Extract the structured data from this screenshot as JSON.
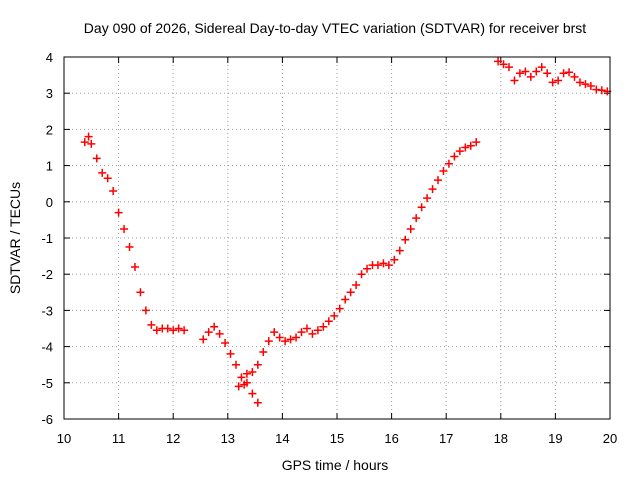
{
  "chart_data": {
    "type": "scatter",
    "title": "Day 090 of 2026, Sidereal Day-to-day VTEC variation (SDTVAR) for receiver brst",
    "xlabel": "GPS time / hours",
    "ylabel": "SDTVAR / TECUs",
    "xlim": [
      10,
      20
    ],
    "ylim": [
      -6,
      4
    ],
    "xticks": [
      "10",
      "11",
      "12",
      "13",
      "14",
      "15",
      "16",
      "17",
      "18",
      "19",
      "20"
    ],
    "yticks": [
      "4",
      "3",
      "2",
      "1",
      "0",
      "-1",
      "-2",
      "-3",
      "-4",
      "-5",
      "-6"
    ],
    "grid": true,
    "marker": "plus",
    "marker_color": "#ff0000",
    "series": [
      {
        "name": "SDTVAR",
        "points": [
          [
            10.38,
            1.65
          ],
          [
            10.45,
            1.8
          ],
          [
            10.5,
            1.6
          ],
          [
            10.6,
            1.2
          ],
          [
            10.7,
            0.8
          ],
          [
            10.8,
            0.65
          ],
          [
            10.9,
            0.3
          ],
          [
            11.0,
            -0.3
          ],
          [
            11.1,
            -0.75
          ],
          [
            11.2,
            -1.25
          ],
          [
            11.3,
            -1.8
          ],
          [
            11.4,
            -2.5
          ],
          [
            11.5,
            -3.0
          ],
          [
            11.6,
            -3.4
          ],
          [
            11.7,
            -3.55
          ],
          [
            11.8,
            -3.5
          ],
          [
            11.9,
            -3.5
          ],
          [
            12.0,
            -3.55
          ],
          [
            12.1,
            -3.5
          ],
          [
            12.2,
            -3.55
          ],
          [
            12.55,
            -3.8
          ],
          [
            12.65,
            -3.6
          ],
          [
            12.75,
            -3.45
          ],
          [
            12.85,
            -3.65
          ],
          [
            12.95,
            -3.9
          ],
          [
            13.05,
            -4.2
          ],
          [
            13.15,
            -4.5
          ],
          [
            13.25,
            -4.85
          ],
          [
            13.35,
            -5.0
          ],
          [
            13.45,
            -5.3
          ],
          [
            13.55,
            -5.55
          ],
          [
            13.2,
            -5.1
          ],
          [
            13.3,
            -5.05
          ],
          [
            13.35,
            -4.75
          ],
          [
            13.45,
            -4.7
          ],
          [
            13.55,
            -4.5
          ],
          [
            13.65,
            -4.15
          ],
          [
            13.75,
            -3.85
          ],
          [
            13.85,
            -3.6
          ],
          [
            13.95,
            -3.75
          ],
          [
            14.05,
            -3.85
          ],
          [
            14.15,
            -3.8
          ],
          [
            14.25,
            -3.75
          ],
          [
            14.35,
            -3.6
          ],
          [
            14.45,
            -3.5
          ],
          [
            14.55,
            -3.65
          ],
          [
            14.65,
            -3.55
          ],
          [
            14.75,
            -3.45
          ],
          [
            14.85,
            -3.3
          ],
          [
            14.95,
            -3.15
          ],
          [
            15.05,
            -2.95
          ],
          [
            15.15,
            -2.7
          ],
          [
            15.25,
            -2.5
          ],
          [
            15.35,
            -2.3
          ],
          [
            15.45,
            -2.0
          ],
          [
            15.55,
            -1.85
          ],
          [
            15.65,
            -1.75
          ],
          [
            15.75,
            -1.75
          ],
          [
            15.85,
            -1.7
          ],
          [
            15.95,
            -1.75
          ],
          [
            16.05,
            -1.6
          ],
          [
            16.15,
            -1.35
          ],
          [
            16.25,
            -1.05
          ],
          [
            16.35,
            -0.75
          ],
          [
            16.45,
            -0.45
          ],
          [
            16.55,
            -0.15
          ],
          [
            16.65,
            0.1
          ],
          [
            16.75,
            0.35
          ],
          [
            16.85,
            0.6
          ],
          [
            16.95,
            0.85
          ],
          [
            17.05,
            1.05
          ],
          [
            17.15,
            1.25
          ],
          [
            17.25,
            1.4
          ],
          [
            17.35,
            1.5
          ],
          [
            17.45,
            1.55
          ],
          [
            17.55,
            1.65
          ],
          [
            17.95,
            3.88
          ],
          [
            18.05,
            3.8
          ],
          [
            18.15,
            3.72
          ],
          [
            18.25,
            3.35
          ],
          [
            18.35,
            3.55
          ],
          [
            18.45,
            3.6
          ],
          [
            18.55,
            3.45
          ],
          [
            18.65,
            3.6
          ],
          [
            18.75,
            3.72
          ],
          [
            18.85,
            3.55
          ],
          [
            18.95,
            3.3
          ],
          [
            19.05,
            3.35
          ],
          [
            19.15,
            3.55
          ],
          [
            19.25,
            3.58
          ],
          [
            19.35,
            3.45
          ],
          [
            19.45,
            3.3
          ],
          [
            19.55,
            3.25
          ],
          [
            19.65,
            3.2
          ],
          [
            19.75,
            3.1
          ],
          [
            19.85,
            3.08
          ],
          [
            19.95,
            3.05
          ]
        ]
      }
    ]
  }
}
